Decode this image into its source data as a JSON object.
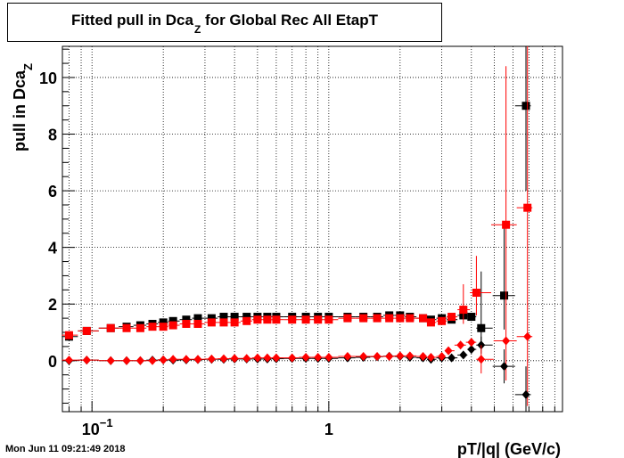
{
  "title": {
    "main": "Fitted pull in Dca",
    "sub": "Z",
    "rest": " for Global Rec All EtapT"
  },
  "timestamp": "Mon Jun 11 09:21:49 2018",
  "chart_data": {
    "type": "scatter",
    "title": "Fitted pull in Dca_Z for Global Rec All EtapT",
    "xlabel": "pT/|q| (GeV/c)",
    "ylabel_main": "pull in Dca",
    "ylabel_sub": "Z",
    "x_scale": "log",
    "xlim": [
      0.075,
      9.7
    ],
    "ylim": [
      -1.8,
      11.1
    ],
    "grid": true,
    "x_major_ticks": [
      {
        "value": 0.1,
        "base": "10",
        "exp": "−1"
      },
      {
        "value": 1,
        "base": "1",
        "exp": ""
      }
    ],
    "y_ticks": [
      0,
      2,
      4,
      6,
      8,
      10
    ],
    "y_tick_labels": [
      "0",
      "2",
      "4",
      "6",
      "8",
      "10"
    ],
    "series": [
      {
        "color": "#000000",
        "marker": "square",
        "points": [
          [
            0.08,
            0.85
          ],
          [
            0.095,
            1.05
          ],
          [
            0.12,
            1.15
          ],
          [
            0.14,
            1.2
          ],
          [
            0.16,
            1.25
          ],
          [
            0.18,
            1.3
          ],
          [
            0.2,
            1.35
          ],
          [
            0.22,
            1.4
          ],
          [
            0.25,
            1.45
          ],
          [
            0.28,
            1.5
          ],
          [
            0.32,
            1.5
          ],
          [
            0.36,
            1.55
          ],
          [
            0.4,
            1.55
          ],
          [
            0.45,
            1.55
          ],
          [
            0.5,
            1.55
          ],
          [
            0.55,
            1.55
          ],
          [
            0.6,
            1.55
          ],
          [
            0.7,
            1.55
          ],
          [
            0.8,
            1.55
          ],
          [
            0.9,
            1.55
          ],
          [
            1.0,
            1.55
          ],
          [
            1.2,
            1.55
          ],
          [
            1.4,
            1.55
          ],
          [
            1.6,
            1.55
          ],
          [
            1.8,
            1.6
          ],
          [
            2.0,
            1.6
          ],
          [
            2.2,
            1.55
          ],
          [
            2.5,
            1.5
          ],
          [
            2.7,
            1.45
          ],
          [
            3.0,
            1.5
          ],
          [
            3.3,
            1.45
          ],
          [
            3.7,
            1.6
          ],
          [
            4.0,
            1.55
          ],
          [
            4.4,
            1.15
          ],
          [
            5.5,
            2.3
          ],
          [
            6.8,
            9.0
          ]
        ],
        "err": {
          "4.0": [
            0.3,
            1.8
          ],
          "4.4": [
            0.5,
            2.0
          ],
          "5.5": [
            1.2,
            2.6
          ],
          "6.8": [
            3.0,
            2.2
          ]
        }
      },
      {
        "color": "#ff0000",
        "marker": "square",
        "points": [
          [
            0.08,
            0.9
          ],
          [
            0.095,
            1.05
          ],
          [
            0.12,
            1.15
          ],
          [
            0.14,
            1.15
          ],
          [
            0.16,
            1.15
          ],
          [
            0.18,
            1.2
          ],
          [
            0.2,
            1.2
          ],
          [
            0.22,
            1.25
          ],
          [
            0.25,
            1.3
          ],
          [
            0.28,
            1.3
          ],
          [
            0.32,
            1.35
          ],
          [
            0.36,
            1.35
          ],
          [
            0.4,
            1.35
          ],
          [
            0.45,
            1.4
          ],
          [
            0.5,
            1.45
          ],
          [
            0.55,
            1.45
          ],
          [
            0.6,
            1.45
          ],
          [
            0.7,
            1.45
          ],
          [
            0.8,
            1.45
          ],
          [
            0.9,
            1.45
          ],
          [
            1.0,
            1.45
          ],
          [
            1.2,
            1.5
          ],
          [
            1.4,
            1.5
          ],
          [
            1.6,
            1.5
          ],
          [
            1.8,
            1.5
          ],
          [
            2.0,
            1.5
          ],
          [
            2.2,
            1.5
          ],
          [
            2.5,
            1.5
          ],
          [
            2.7,
            1.35
          ],
          [
            3.0,
            1.4
          ],
          [
            3.3,
            1.55
          ],
          [
            3.7,
            1.8
          ],
          [
            4.2,
            2.4
          ],
          [
            5.6,
            4.8
          ],
          [
            6.9,
            5.4
          ]
        ],
        "err": {
          "3.7": [
            0.5,
            0.9
          ],
          "4.2": [
            0.8,
            1.3
          ],
          "5.6": [
            5.5,
            5.6
          ],
          "6.9": [
            7.0,
            6.0
          ]
        }
      },
      {
        "color": "#000000",
        "marker": "diamond",
        "points": [
          [
            0.08,
            0.0
          ],
          [
            0.095,
            0.02
          ],
          [
            0.12,
            0.0
          ],
          [
            0.14,
            0.0
          ],
          [
            0.16,
            0.0
          ],
          [
            0.18,
            0.02
          ],
          [
            0.2,
            0.03
          ],
          [
            0.22,
            0.02
          ],
          [
            0.25,
            0.03
          ],
          [
            0.28,
            0.04
          ],
          [
            0.32,
            0.05
          ],
          [
            0.36,
            0.05
          ],
          [
            0.4,
            0.06
          ],
          [
            0.45,
            0.06
          ],
          [
            0.5,
            0.06
          ],
          [
            0.55,
            0.06
          ],
          [
            0.6,
            0.07
          ],
          [
            0.7,
            0.08
          ],
          [
            0.8,
            0.08
          ],
          [
            0.9,
            0.08
          ],
          [
            1.0,
            0.08
          ],
          [
            1.2,
            0.1
          ],
          [
            1.4,
            0.12
          ],
          [
            1.6,
            0.14
          ],
          [
            1.8,
            0.16
          ],
          [
            2.0,
            0.15
          ],
          [
            2.2,
            0.12
          ],
          [
            2.5,
            0.1
          ],
          [
            2.7,
            0.05
          ],
          [
            3.0,
            0.1
          ],
          [
            3.3,
            0.1
          ],
          [
            3.7,
            0.2
          ],
          [
            4.0,
            0.4
          ],
          [
            4.4,
            0.55
          ],
          [
            5.5,
            -0.2
          ],
          [
            6.8,
            -1.2
          ]
        ],
        "err": {
          "4.4": [
            0.3,
            0.3
          ],
          "5.5": [
            0.6,
            0.6
          ],
          "6.8": [
            1.0,
            1.0
          ]
        }
      },
      {
        "color": "#ff0000",
        "marker": "diamond",
        "points": [
          [
            0.08,
            0.02
          ],
          [
            0.095,
            0.02
          ],
          [
            0.12,
            0.0
          ],
          [
            0.14,
            0.0
          ],
          [
            0.16,
            0.0
          ],
          [
            0.18,
            0.0
          ],
          [
            0.2,
            0.03
          ],
          [
            0.22,
            0.05
          ],
          [
            0.25,
            0.05
          ],
          [
            0.28,
            0.05
          ],
          [
            0.32,
            0.06
          ],
          [
            0.36,
            0.07
          ],
          [
            0.4,
            0.08
          ],
          [
            0.45,
            0.08
          ],
          [
            0.5,
            0.1
          ],
          [
            0.55,
            0.1
          ],
          [
            0.6,
            0.1
          ],
          [
            0.7,
            0.1
          ],
          [
            0.8,
            0.12
          ],
          [
            0.9,
            0.12
          ],
          [
            1.0,
            0.12
          ],
          [
            1.2,
            0.15
          ],
          [
            1.4,
            0.15
          ],
          [
            1.6,
            0.15
          ],
          [
            1.8,
            0.15
          ],
          [
            2.0,
            0.17
          ],
          [
            2.2,
            0.17
          ],
          [
            2.5,
            0.15
          ],
          [
            2.7,
            0.12
          ],
          [
            3.0,
            0.15
          ],
          [
            3.2,
            0.35
          ],
          [
            3.6,
            0.55
          ],
          [
            4.0,
            0.65
          ],
          [
            4.4,
            0.05
          ],
          [
            5.6,
            0.7
          ],
          [
            6.9,
            0.85
          ]
        ],
        "err": {
          "4.0": [
            0.3,
            0.3
          ],
          "4.4": [
            0.5,
            0.5
          ]
        }
      }
    ]
  }
}
